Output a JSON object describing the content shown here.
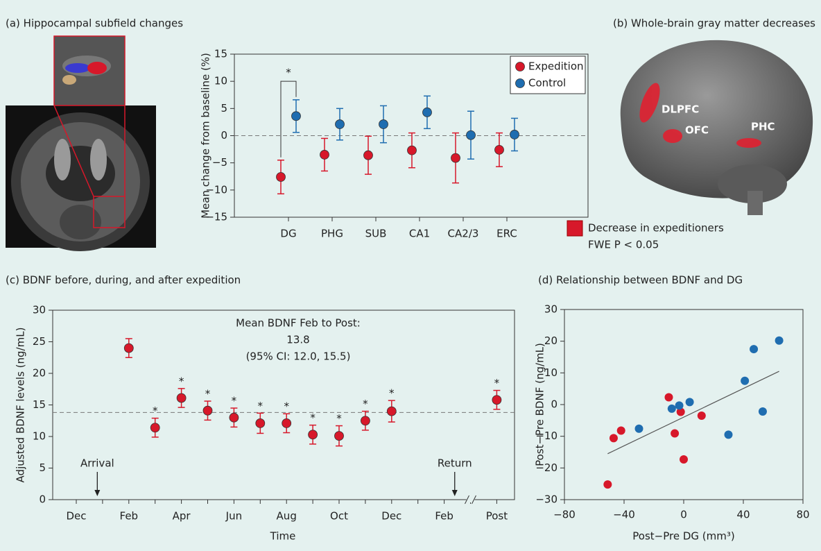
{
  "chart_data": [
    {
      "type": "errorbar",
      "title": "(a) Hippocampal subfield changes",
      "ylabel": "Mean change from baseline (%)",
      "categories": [
        "DG",
        "PHG",
        "SUB",
        "CA1",
        "CA2/3",
        "ERC"
      ],
      "series": [
        {
          "name": "Expedition",
          "color": "#d7182a",
          "values": [
            -7.6,
            -3.5,
            -3.6,
            -2.7,
            -4.1,
            -2.6
          ],
          "errors": [
            3.1,
            3.0,
            3.5,
            3.2,
            4.6,
            3.1
          ]
        },
        {
          "name": "Control",
          "color": "#1f6db0",
          "values": [
            3.6,
            2.1,
            2.1,
            4.3,
            0.1,
            0.2
          ],
          "errors": [
            3.0,
            2.9,
            3.4,
            3.0,
            4.4,
            3.0
          ]
        }
      ],
      "ylim": [
        -15,
        15
      ],
      "yticks": [
        {
          "value": -15,
          "label": "−15"
        },
        {
          "value": -10,
          "label": "−10"
        },
        {
          "value": -5,
          "label": "−5"
        },
        0,
        5,
        10,
        15
      ],
      "reference_line": 0,
      "legend": "upper right",
      "bracket": {
        "label": "*",
        "category": "DG",
        "y": 10
      }
    },
    {
      "type": "errorbar",
      "title": "(c) BDNF before, during, and after expedition",
      "ylabel": "Adjusted BDNF levels (ng/mL)",
      "xlabel": "Time",
      "categories": [
        "Dec",
        null,
        "Feb",
        null,
        "Apr",
        null,
        "Jun",
        null,
        "Aug",
        null,
        "Oct",
        null,
        "Dec",
        null,
        "Feb",
        null,
        "Post"
      ],
      "color": "#d7182a",
      "values": [
        null,
        null,
        24,
        11.4,
        16.1,
        14.1,
        13,
        12.1,
        12.1,
        10.3,
        10.1,
        12.5,
        14,
        null,
        null,
        null,
        15.8
      ],
      "errors": [
        null,
        null,
        1.5,
        1.5,
        1.5,
        1.5,
        1.5,
        1.6,
        1.5,
        1.5,
        1.6,
        1.5,
        1.7,
        null,
        null,
        null,
        1.5
      ],
      "significance": [
        null,
        null,
        null,
        "*",
        "*",
        "*",
        "*",
        "*",
        "*",
        "*",
        "*",
        "*",
        "*",
        null,
        null,
        null,
        "*"
      ],
      "ylim": [
        0,
        30
      ],
      "yticks": [
        0,
        5,
        10,
        15,
        20,
        25,
        30
      ],
      "mean": 13.8,
      "mean_label": "Mean BDNF Feb to Post:",
      "ci_label": "(95% CI: 12.0, 15.5)",
      "events": [
        {
          "label": "Arrival",
          "x": 0.8
        },
        {
          "label": "Return",
          "x": 14.4
        }
      ]
    },
    {
      "type": "scatter",
      "title": "(d) Relationship between BDNF and DG",
      "xlabel": "Post−Pre DG (mm³)",
      "ylabel": "Post−Pre BDNF (ng/mL)",
      "series": [
        {
          "color": "#d7182a",
          "x": [
            -51,
            -47,
            -42,
            -10,
            -6,
            -2,
            0,
            12
          ],
          "values": [
            -25.2,
            -10.6,
            -8.2,
            2.3,
            -9.1,
            -2.3,
            -17.3,
            -3.5
          ]
        },
        {
          "color": "#1f6db0",
          "x": [
            -30,
            -8,
            -3,
            4,
            30,
            41,
            47,
            53,
            64
          ],
          "values": [
            -7.6,
            -1.3,
            -0.3,
            0.8,
            -9.5,
            7.5,
            17.5,
            -2.2,
            20.2
          ]
        }
      ],
      "fit": {
        "x": [
          -51,
          64
        ],
        "y": [
          -15.5,
          10.5
        ]
      },
      "xlim": [
        -80,
        80
      ],
      "xticks": [
        {
          "value": -80,
          "label": "−80"
        },
        {
          "value": -40,
          "label": "−40"
        },
        0,
        40,
        80
      ],
      "ylim": [
        -30,
        30
      ],
      "yticks": [
        {
          "value": -30,
          "label": "−30"
        },
        {
          "value": -20,
          "label": "−20"
        },
        {
          "value": -10,
          "label": "−10"
        },
        0,
        10,
        20,
        30
      ]
    }
  ],
  "brain_panel": {
    "title": "(b) Whole-brain gray matter decreases",
    "regions": [
      "DLPFC",
      "OFC",
      "PHC"
    ],
    "legend": [
      "Decrease in expeditioners",
      "FWE P < 0.05"
    ]
  }
}
